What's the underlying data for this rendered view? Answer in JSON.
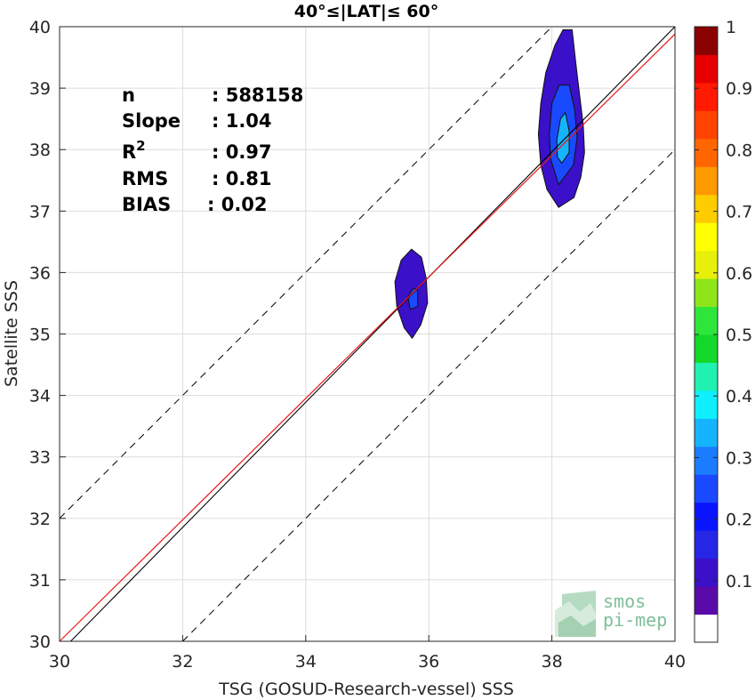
{
  "chart_data": {
    "type": "contour-scatter",
    "title": "40°≤|LAT|≤ 60°",
    "xlabel": "TSG (GOSUD-Research-vessel) SSS",
    "ylabel": "Satellite SSS",
    "xlim": [
      30,
      40
    ],
    "ylim": [
      30,
      40
    ],
    "xticks": [
      "30",
      "32",
      "34",
      "36",
      "38",
      "40"
    ],
    "yticks": [
      "30",
      "31",
      "32",
      "33",
      "34",
      "35",
      "36",
      "37",
      "38",
      "39",
      "40"
    ],
    "grid": true,
    "stats": [
      {
        "label": "n",
        "value": ": 588158"
      },
      {
        "label": "Slope",
        "value": ": 1.04"
      },
      {
        "label": "R",
        "sup": "2",
        "value": ": 0.97"
      },
      {
        "label": "RMS",
        "value": ": 0.81"
      },
      {
        "label": "BIAS",
        "value": ": 0.02"
      }
    ],
    "lines": {
      "one_to_one": {
        "x": [
          30,
          40
        ],
        "y": [
          30,
          40
        ],
        "color": "#000000"
      },
      "regression": {
        "x": [
          30,
          40
        ],
        "y": [
          30,
          40
        ],
        "slope": 1.04,
        "color": "#e8191b"
      },
      "dashed_offset": 2
    },
    "contours": [
      {
        "name": "cluster-upper",
        "levels": [
          {
            "level": 0.05,
            "color": "#3a10c8",
            "points": [
              [
                38.11,
                37.06
              ],
              [
                38.36,
                37.22
              ],
              [
                38.47,
                37.55
              ],
              [
                38.53,
                37.95
              ],
              [
                38.51,
                38.4
              ],
              [
                38.45,
                38.9
              ],
              [
                38.39,
                39.4
              ],
              [
                38.33,
                39.95
              ],
              [
                38.18,
                39.95
              ],
              [
                38.05,
                39.7
              ],
              [
                37.9,
                39.25
              ],
              [
                37.82,
                38.75
              ],
              [
                37.78,
                38.25
              ],
              [
                37.82,
                37.75
              ],
              [
                37.92,
                37.35
              ]
            ]
          },
          {
            "level": 0.2,
            "color": "#1a4aff",
            "points": [
              [
                38.11,
                37.43
              ],
              [
                38.35,
                37.75
              ],
              [
                38.41,
                38.2
              ],
              [
                38.37,
                38.65
              ],
              [
                38.28,
                39.05
              ],
              [
                38.12,
                39.05
              ],
              [
                38.0,
                38.75
              ],
              [
                37.96,
                38.25
              ],
              [
                37.98,
                37.85
              ]
            ]
          },
          {
            "level": 0.35,
            "color": "#16b4ff",
            "points": [
              [
                38.16,
                37.78
              ],
              [
                38.28,
                37.95
              ],
              [
                38.28,
                38.3
              ],
              [
                38.22,
                38.6
              ],
              [
                38.14,
                38.5
              ],
              [
                38.08,
                38.15
              ],
              [
                38.09,
                37.88
              ]
            ]
          }
        ]
      },
      {
        "name": "cluster-lower",
        "levels": [
          {
            "level": 0.05,
            "color": "#3a10c8",
            "points": [
              [
                35.73,
                34.93
              ],
              [
                35.87,
                35.15
              ],
              [
                35.98,
                35.5
              ],
              [
                35.96,
                35.9
              ],
              [
                35.88,
                36.25
              ],
              [
                35.72,
                36.38
              ],
              [
                35.55,
                36.2
              ],
              [
                35.45,
                35.85
              ],
              [
                35.48,
                35.45
              ],
              [
                35.6,
                35.1
              ]
            ]
          },
          {
            "level": 0.2,
            "color": "#1a4aff",
            "points": [
              [
                35.7,
                35.4
              ],
              [
                35.82,
                35.45
              ],
              [
                35.82,
                35.7
              ],
              [
                35.75,
                35.75
              ],
              [
                35.66,
                35.6
              ]
            ]
          }
        ]
      }
    ],
    "colorbar": {
      "ticks": [
        "0.1",
        "0.2",
        "0.3",
        "0.4",
        "0.5",
        "0.6",
        "0.7",
        "0.8",
        "0.9",
        "1"
      ],
      "colors": [
        "#ffffff",
        "#5a0aa8",
        "#3a10c8",
        "#2626e6",
        "#0a14ff",
        "#1a4aff",
        "#1a7cff",
        "#16b4ff",
        "#0ef0ff",
        "#20f0b0",
        "#14d82a",
        "#2ee63a",
        "#8ee61a",
        "#e6f00a",
        "#ffff00",
        "#ffcc00",
        "#ff9900",
        "#ff6600",
        "#ff4400",
        "#ff1a00",
        "#e60000",
        "#8b0000"
      ]
    }
  },
  "logo": {
    "line1": "smos",
    "line2": "pi-mep"
  }
}
